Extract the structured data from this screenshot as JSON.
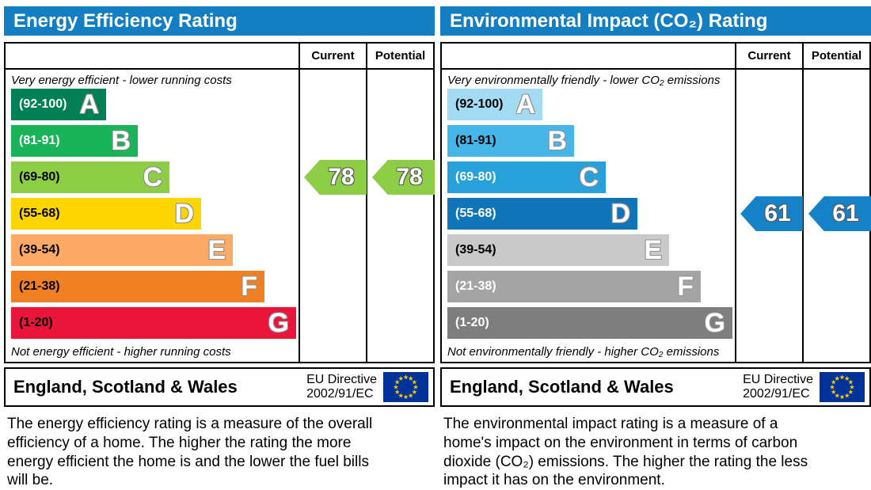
{
  "chart_data": [
    {
      "type": "bar",
      "subtype": "epc-rating",
      "title": "Energy Efficiency Rating",
      "column_headers": [
        "Current",
        "Potential"
      ],
      "top_label": "Very energy efficient - lower running costs",
      "bottom_label": "Not energy efficient - higher running costs",
      "bands": [
        {
          "range_label": "(92-100)",
          "letter": "A",
          "min": 92,
          "max": 100,
          "color": "#008054",
          "range_text_color": "#ffffff"
        },
        {
          "range_label": "(81-91)",
          "letter": "B",
          "min": 81,
          "max": 91,
          "color": "#19b459",
          "range_text_color": "#ffffff"
        },
        {
          "range_label": "(69-80)",
          "letter": "C",
          "min": 69,
          "max": 80,
          "color": "#8dce46",
          "range_text_color": "#000000"
        },
        {
          "range_label": "(55-68)",
          "letter": "D",
          "min": 55,
          "max": 68,
          "color": "#ffd500",
          "range_text_color": "#000000"
        },
        {
          "range_label": "(39-54)",
          "letter": "E",
          "min": 39,
          "max": 54,
          "color": "#fcaa65",
          "range_text_color": "#000000"
        },
        {
          "range_label": "(21-38)",
          "letter": "F",
          "min": 21,
          "max": 38,
          "color": "#ef8023",
          "range_text_color": "#000000"
        },
        {
          "range_label": "(1-20)",
          "letter": "G",
          "min": 1,
          "max": 20,
          "color": "#e9153b",
          "range_text_color": "#000000"
        }
      ],
      "current": 78,
      "potential": 78,
      "current_band": "C",
      "potential_band": "C",
      "arrow_color": "#8dce46",
      "footer": {
        "region": "England, Scotland & Wales",
        "directive_line1": "EU Directive",
        "directive_line2": "2002/91/EC",
        "flag": "eu-flag",
        "flag_bg": "#003399",
        "flag_star_color": "#ffcc00"
      },
      "description": "The energy efficiency rating is a measure of the overall efficiency of a home. The higher the rating the more energy efficient the home is and the lower the fuel bills will be."
    },
    {
      "type": "bar",
      "subtype": "epc-rating",
      "title": "Environmental Impact (CO₂) Rating",
      "column_headers": [
        "Current",
        "Potential"
      ],
      "top_label": "Very environmentally friendly - lower CO₂ emissions",
      "bottom_label": "Not environmentally friendly - higher CO₂ emissions",
      "bands": [
        {
          "range_label": "(92-100)",
          "letter": "A",
          "min": 92,
          "max": 100,
          "color": "#a3dbf3",
          "range_text_color": "#000000"
        },
        {
          "range_label": "(81-91)",
          "letter": "B",
          "min": 81,
          "max": 91,
          "color": "#46b5e8",
          "range_text_color": "#000000"
        },
        {
          "range_label": "(69-80)",
          "letter": "C",
          "min": 69,
          "max": 80,
          "color": "#28a0da",
          "range_text_color": "#ffffff"
        },
        {
          "range_label": "(55-68)",
          "letter": "D",
          "min": 55,
          "max": 68,
          "color": "#0f74b8",
          "range_text_color": "#ffffff"
        },
        {
          "range_label": "(39-54)",
          "letter": "E",
          "min": 39,
          "max": 54,
          "color": "#c9c9c9",
          "range_text_color": "#000000"
        },
        {
          "range_label": "(21-38)",
          "letter": "F",
          "min": 21,
          "max": 38,
          "color": "#a4a4a4",
          "range_text_color": "#ffffff"
        },
        {
          "range_label": "(1-20)",
          "letter": "G",
          "min": 1,
          "max": 20,
          "color": "#7e7e7e",
          "range_text_color": "#ffffff"
        }
      ],
      "current": 61,
      "potential": 61,
      "current_band": "D",
      "potential_band": "D",
      "arrow_color": "#1581c6",
      "footer": {
        "region": "England, Scotland & Wales",
        "directive_line1": "EU Directive",
        "directive_line2": "2002/91/EC",
        "flag": "eu-flag",
        "flag_bg": "#003399",
        "flag_star_color": "#ffcc00"
      },
      "description": "The environmental impact rating is a measure of a home's impact on the environment in terms of carbon dioxide (CO₂) emissions. The higher the rating the less impact it has on the environment."
    }
  ]
}
